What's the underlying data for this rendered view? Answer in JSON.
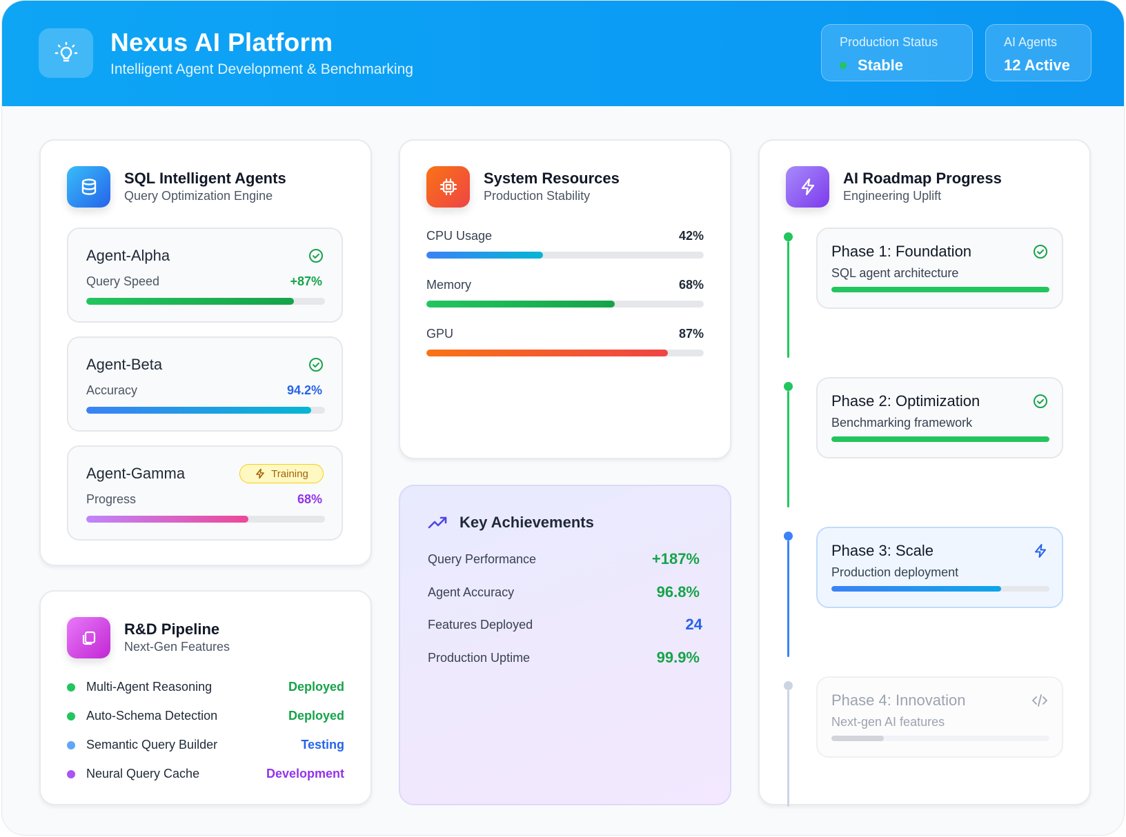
{
  "header": {
    "title": "Nexus AI Platform",
    "subtitle": "Intelligent Agent Development & Benchmarking",
    "status": {
      "label": "Production Status",
      "value": "Stable"
    },
    "agents": {
      "label": "AI Agents",
      "value": "12 Active"
    }
  },
  "sql_agents": {
    "title": "SQL Intelligent Agents",
    "subtitle": "Query Optimization Engine",
    "agents": [
      {
        "name": "Agent-Alpha",
        "metric": "Query Speed",
        "value": "+87%",
        "progress": 0.87,
        "state_icon": "check-circle-icon"
      },
      {
        "name": "Agent-Beta",
        "metric": "Accuracy",
        "value": "94.2%",
        "progress": 0.942,
        "state_icon": "check-circle-icon"
      },
      {
        "name": "Agent-Gamma",
        "metric": "Progress",
        "value": "68%",
        "progress": 0.68,
        "badge": "Training"
      }
    ]
  },
  "resources": {
    "title": "System Resources",
    "subtitle": "Production Stability",
    "items": [
      {
        "label": "CPU Usage",
        "value": "42%",
        "progress": 0.42
      },
      {
        "label": "Memory",
        "value": "68%",
        "progress": 0.68
      },
      {
        "label": "GPU",
        "value": "87%",
        "progress": 0.87
      }
    ]
  },
  "achievements": {
    "title": "Key Achievements",
    "items": [
      {
        "label": "Query Performance",
        "value": "+187%",
        "color": "#16a34a"
      },
      {
        "label": "Agent Accuracy",
        "value": "96.8%",
        "color": "#16a34a"
      },
      {
        "label": "Features Deployed",
        "value": "24",
        "color": "#2563eb"
      },
      {
        "label": "Production Uptime",
        "value": "99.9%",
        "color": "#16a34a"
      }
    ]
  },
  "pipeline": {
    "title": "R&D Pipeline",
    "subtitle": "Next-Gen Features",
    "items": [
      {
        "label": "Multi-Agent Reasoning",
        "status": "Deployed",
        "color": "#16a34a",
        "dot": "#22c55e"
      },
      {
        "label": "Auto-Schema Detection",
        "status": "Deployed",
        "color": "#16a34a",
        "dot": "#22c55e"
      },
      {
        "label": "Semantic Query Builder",
        "status": "Testing",
        "color": "#2563eb",
        "dot": "#60a5fa"
      },
      {
        "label": "Neural Query Cache",
        "status": "Development",
        "color": "#9333ea",
        "dot": "#a855f7"
      }
    ]
  },
  "roadmap": {
    "title": "AI Roadmap Progress",
    "subtitle": "Engineering Uplift",
    "phases": [
      {
        "title": "Phase 1: Foundation",
        "subtitle": "SQL agent architecture",
        "progress": 1.0,
        "state": "complete",
        "icon": "check-circle-icon"
      },
      {
        "title": "Phase 2: Optimization",
        "subtitle": "Benchmarking framework",
        "progress": 1.0,
        "state": "complete",
        "icon": "check-circle-icon"
      },
      {
        "title": "Phase 3: Scale",
        "subtitle": "Production deployment",
        "progress": 0.78,
        "state": "active",
        "icon": "lightning-icon"
      },
      {
        "title": "Phase 4: Innovation",
        "subtitle": "Next-gen AI features",
        "progress": 0.24,
        "state": "upcoming",
        "icon": "code-icon"
      }
    ]
  },
  "colors": {
    "accent": "#0ea5f5",
    "success": "#16a34a",
    "info": "#2563eb",
    "purple": "#9333ea"
  }
}
